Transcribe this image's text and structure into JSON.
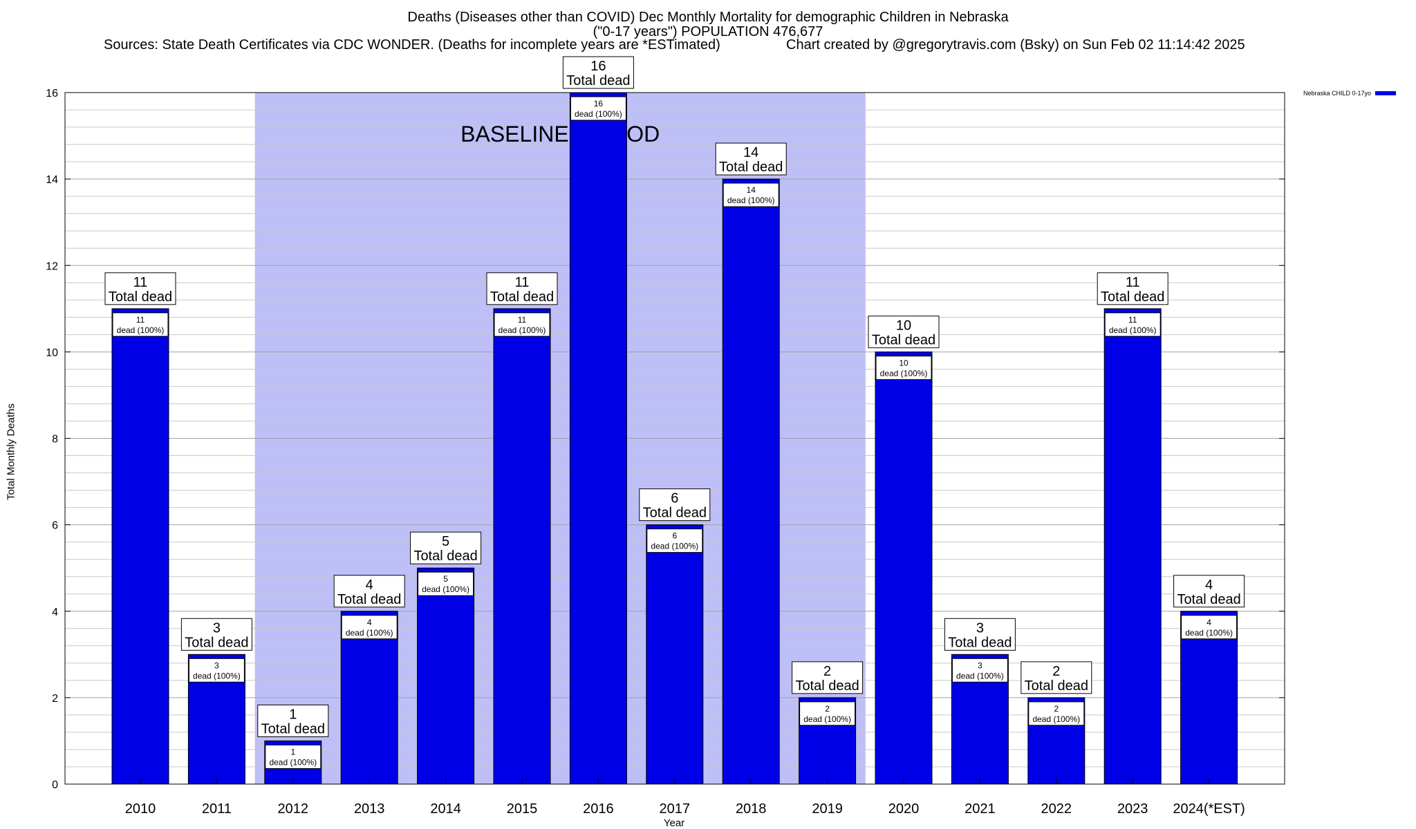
{
  "chart_data": {
    "type": "bar",
    "title_line1": "Deaths (Diseases other than COVID) Dec Monthly Mortality for demographic Children in Nebraska",
    "title_line2": "(\"0-17 years\") POPULATION 476,677",
    "sources": "Sources: State Death Certificates via CDC WONDER. (Deaths for incomplete years are *ESTimated)",
    "credit": "Chart created by @gregorytravis.com (Bsky) on Sun Feb 02 11:14:42 2025",
    "xlabel": "Year",
    "ylabel": "Total Monthly Deaths",
    "categories": [
      "2010",
      "2011",
      "2012",
      "2013",
      "2014",
      "2015",
      "2016",
      "2017",
      "2018",
      "2019",
      "2020",
      "2021",
      "2022",
      "2023",
      "2024(*EST)"
    ],
    "series": [
      {
        "name": "Nebraska CHILD 0-17yo",
        "values": [
          11,
          3,
          1,
          4,
          5,
          11,
          16,
          6,
          14,
          2,
          10,
          3,
          2,
          11,
          4
        ]
      }
    ],
    "ylim": [
      0,
      16
    ],
    "yticks": [
      0,
      2,
      4,
      6,
      8,
      10,
      12,
      14,
      16
    ],
    "grid": true,
    "legend_position": "top-right",
    "bar_color": "#0000e6",
    "baseline_shade_color": "#bfbff7",
    "baseline_label": "BASELINE PERIOD",
    "baseline_range": [
      "2012",
      "2019"
    ],
    "total_label_suffix": "Total dead",
    "bar_label_suffix": "dead (100%)"
  }
}
